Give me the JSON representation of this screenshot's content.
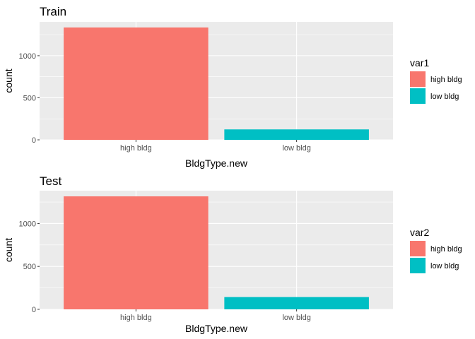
{
  "chart_data": [
    {
      "type": "bar",
      "title": "Train",
      "xlabel": "BldgType.new",
      "ylabel": "count",
      "categories": [
        "high bldg",
        "low bldg"
      ],
      "values": [
        1336,
        124
      ],
      "colors": [
        "#F8766D",
        "#00BFC4"
      ],
      "yticks": [
        0,
        500,
        1000
      ],
      "ylim": [
        0,
        1402
      ],
      "grid": true,
      "legend": {
        "title": "var1",
        "position": "right",
        "entries": [
          "high bldg",
          "low bldg"
        ]
      }
    },
    {
      "type": "bar",
      "title": "Test",
      "xlabel": "BldgType.new",
      "ylabel": "count",
      "categories": [
        "high bldg",
        "low bldg"
      ],
      "values": [
        1316,
        143
      ],
      "colors": [
        "#F8766D",
        "#00BFC4"
      ],
      "yticks": [
        0,
        500,
        1000
      ],
      "ylim": [
        0,
        1382
      ],
      "grid": true,
      "legend": {
        "title": "var2",
        "position": "right",
        "entries": [
          "high bldg",
          "low bldg"
        ]
      }
    }
  ]
}
